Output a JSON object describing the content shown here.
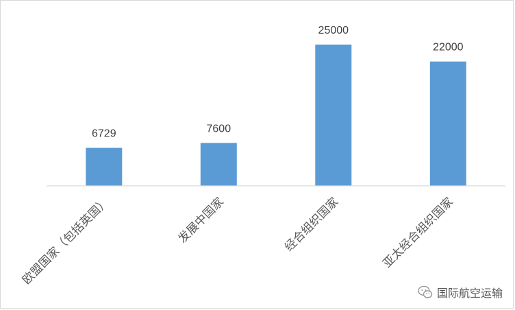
{
  "chart_data": {
    "type": "bar",
    "categories": [
      "欧盟国家（包括英国）",
      "发展中国家",
      "经合组织国家",
      "亚太经合组织国家"
    ],
    "values": [
      6729,
      7600,
      25000,
      22000
    ],
    "ylim": [
      0,
      25000
    ],
    "grid": false,
    "bar_color": "#5b9bd5",
    "title": "",
    "xlabel": "",
    "ylabel": ""
  },
  "watermark": {
    "text": "国际航空运输",
    "icon": "wechat-icon"
  }
}
